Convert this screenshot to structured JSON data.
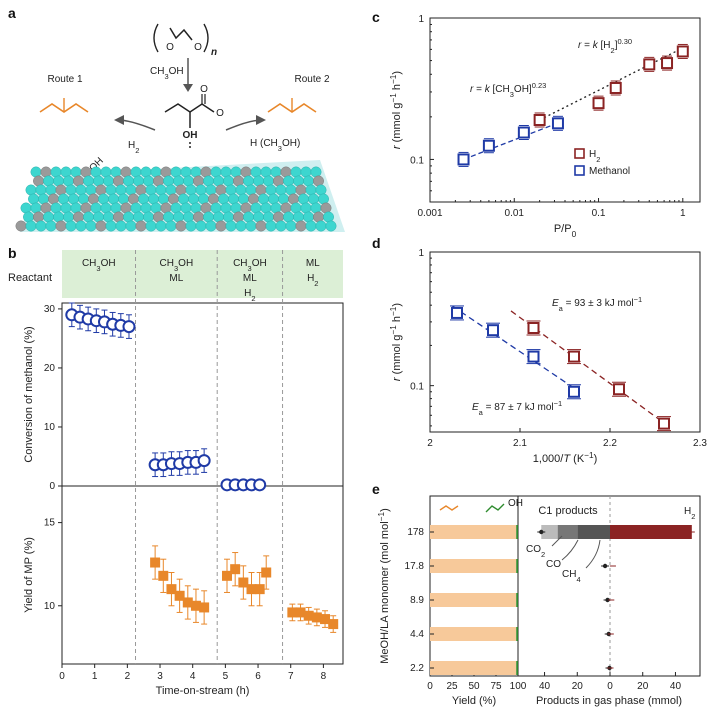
{
  "panels": {
    "a": "a",
    "b": "b",
    "c": "c",
    "d": "d",
    "e": "e"
  },
  "colors": {
    "blue": "#1f3aa6",
    "red": "#8b2323",
    "orange": "#e8872a",
    "green": "#2e8b2e",
    "teal": "#3dd6cf",
    "grey": "#8a8a8a",
    "lightgreen": "#dcefd6",
    "peach": "#f7c99a"
  },
  "scheme": {
    "reagent_top": "CH3OH",
    "n_label": "n",
    "route1": "Route 1",
    "route2": "Route 2",
    "h2": "H2",
    "h_ch3oh": "H (CH3OH)",
    "ch3oh_side": "CH3OH",
    "oh": "OH"
  },
  "chart_data": [
    {
      "id": "b",
      "type": "scatter",
      "xlabel": "Time-on-stream (h)",
      "xlim": [
        0,
        8.6
      ],
      "xticks": [
        0,
        1,
        2,
        3,
        4,
        5,
        6,
        7,
        8
      ],
      "reactant_label": "Reactant",
      "segments": [
        {
          "lines": [
            "CH3OH"
          ],
          "colors": [
            "blue"
          ],
          "x0": 0,
          "x1": 2.25
        },
        {
          "lines": [
            "CH3OH",
            "ML"
          ],
          "colors": [
            "blue",
            "orange"
          ],
          "x0": 2.25,
          "x1": 4.75
        },
        {
          "lines": [
            "CH3OH",
            "ML",
            "H2"
          ],
          "colors": [
            "blue",
            "orange",
            "red"
          ],
          "x0": 4.75,
          "x1": 6.75
        },
        {
          "lines": [
            "ML",
            "H2"
          ],
          "colors": [
            "orange",
            "red"
          ],
          "x0": 6.75,
          "x1": 8.6
        }
      ],
      "top": {
        "ylabel": "Conversion of methanol (%)",
        "ylim": [
          0,
          31
        ],
        "yticks": [
          0,
          10,
          20,
          30
        ],
        "series": [
          {
            "name": "Conversion of methanol",
            "color": "blue",
            "marker": "circle",
            "x": [
              0.3,
              0.55,
              0.8,
              1.05,
              1.3,
              1.55,
              1.8,
              2.05,
              2.85,
              3.1,
              3.35,
              3.6,
              3.85,
              4.1,
              4.35,
              5.05,
              5.3,
              5.55,
              5.8,
              6.05
            ],
            "y": [
              29,
              28.6,
              28.3,
              28,
              27.8,
              27.4,
              27.2,
              27,
              3.6,
              3.6,
              3.8,
              3.8,
              4.0,
              4.0,
              4.3,
              0.2,
              0.2,
              0.2,
              0.2,
              0.2
            ],
            "err": [
              2,
              2,
              2,
              2,
              2,
              2,
              2,
              2,
              2,
              2,
              2,
              2,
              2,
              2,
              2,
              0,
              0,
              0,
              0,
              0
            ]
          }
        ]
      },
      "bottom": {
        "ylabel": "Yield of MP (%)",
        "ylim": [
          6.5,
          17.2
        ],
        "yticks": [
          10,
          15
        ],
        "series": [
          {
            "name": "Yield of MP",
            "color": "orange",
            "marker": "square",
            "x": [
              2.85,
              3.1,
              3.35,
              3.6,
              3.85,
              4.1,
              4.35,
              5.05,
              5.3,
              5.55,
              5.8,
              6.05,
              6.25,
              7.05,
              7.3,
              7.55,
              7.8,
              8.05,
              8.3
            ],
            "y": [
              12.6,
              11.8,
              11.0,
              10.6,
              10.2,
              10.0,
              9.9,
              11.8,
              12.2,
              11.4,
              11.0,
              11.0,
              12.0,
              9.6,
              9.6,
              9.4,
              9.3,
              9.2,
              8.9
            ],
            "err": [
              1,
              1,
              1,
              1,
              1,
              1,
              1,
              1,
              1,
              1,
              1,
              1,
              1,
              0.5,
              0.5,
              0.5,
              0.5,
              0.5,
              0.5
            ]
          }
        ]
      }
    },
    {
      "id": "c",
      "type": "scatter",
      "scale": "log-log",
      "xlabel": "P/P0",
      "ylabel": "r (mmol g−1 h−1)",
      "xlim": [
        0.001,
        1.6
      ],
      "ylim": [
        0.05,
        1
      ],
      "xticks": [
        "0.001",
        "0.01",
        "0.1",
        "1"
      ],
      "yticks": [
        "0.1",
        "1"
      ],
      "series": [
        {
          "name": "H2",
          "color": "red",
          "x": [
            0.02,
            0.1,
            0.16,
            0.4,
            0.65,
            1.0
          ],
          "y": [
            0.19,
            0.25,
            0.32,
            0.47,
            0.48,
            0.58
          ]
        },
        {
          "name": "Methanol",
          "color": "blue",
          "x": [
            0.0025,
            0.005,
            0.013,
            0.033
          ],
          "y": [
            0.1,
            0.125,
            0.155,
            0.18
          ]
        }
      ],
      "fits": [
        {
          "color": "red",
          "exponent": 0.3,
          "x": [
            0.02,
            1.0
          ],
          "label": "r = k [H2]",
          "exp_label": "0.30"
        },
        {
          "color": "blue",
          "exponent": 0.23,
          "x": [
            0.0025,
            0.033
          ],
          "label": "r = k [CH3OH]",
          "exp_label": "0.23"
        }
      ],
      "legend": {
        "position": "bottom-right",
        "items": [
          {
            "label": "H2",
            "color": "red"
          },
          {
            "label": "Methanol",
            "color": "blue"
          }
        ]
      }
    },
    {
      "id": "d",
      "type": "scatter",
      "scale": "log-y",
      "xlabel": "1,000/T (K−1)",
      "ylabel": "r (mmol g−1 h−1)",
      "xlim": [
        2.0,
        2.3
      ],
      "ylim": [
        0.045,
        1
      ],
      "xticks": [
        "2",
        "2.1",
        "2.2",
        "2.3"
      ],
      "yticks": [
        "0.1",
        "1"
      ],
      "series": [
        {
          "name": "red",
          "color": "red",
          "x": [
            2.115,
            2.16,
            2.21,
            2.26
          ],
          "y": [
            0.27,
            0.165,
            0.094,
            0.052
          ]
        },
        {
          "name": "blue",
          "color": "blue",
          "x": [
            2.03,
            2.07,
            2.115,
            2.16
          ],
          "y": [
            0.35,
            0.26,
            0.165,
            0.09
          ]
        }
      ],
      "fits": [
        {
          "color": "red",
          "x": [
            2.09,
            2.265
          ],
          "label": "Ea = 93 ± 3 kJ mol−1"
        },
        {
          "color": "blue",
          "x": [
            2.025,
            2.165
          ],
          "label": "Ea = 87 ± 7 kJ mol−1"
        }
      ]
    },
    {
      "id": "e",
      "type": "bar",
      "ylabel": "MeOH/LA monomer (mol mol−1)",
      "categories": [
        "178",
        "17.8",
        "8.9",
        "4.4",
        "2.2"
      ],
      "left": {
        "xlabel": "Yield (%)",
        "xticks": [
          "0",
          "25",
          "50",
          "75",
          "100"
        ],
        "values": [
          100,
          100,
          100,
          100,
          100
        ],
        "ester_frac": 0.98
      },
      "right": {
        "xlabel": "Products in gas phase (mmol)",
        "xticks": [
          "40",
          "20",
          "0",
          "20",
          "40"
        ],
        "c1_title": "C1 products",
        "h2_title": "H2",
        "co2": "CO2",
        "co": "CO",
        "ch4": "CH4",
        "h2": [
          50,
          1.8,
          0.8,
          0.5,
          0.2
        ],
        "c1_total": [
          42,
          3,
          1.5,
          0.8,
          0.3
        ],
        "c1_co2": [
          10,
          0,
          0,
          0,
          0
        ],
        "c1_co": [
          12,
          0,
          0,
          0,
          0
        ],
        "c1_ch4": [
          20,
          0,
          0,
          0,
          0
        ]
      }
    }
  ]
}
